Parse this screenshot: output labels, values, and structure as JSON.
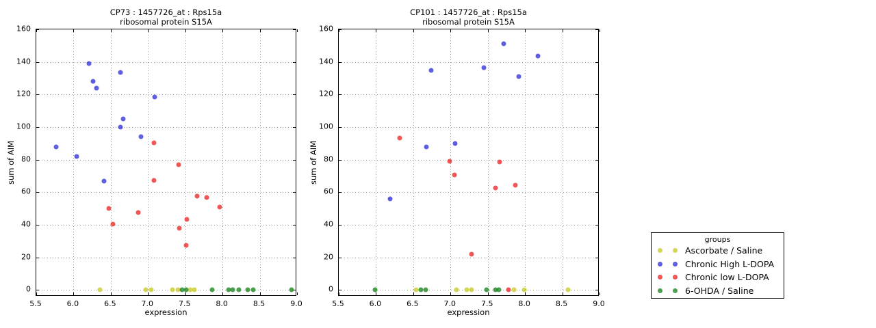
{
  "legend": {
    "title": "groups",
    "entries": [
      {
        "label": "Ascorbate / Saline",
        "color": "rgba(199,199,31,0.75)"
      },
      {
        "label": "Chronic High L-DOPA",
        "color": "rgba(40,40,214,0.75)"
      },
      {
        "label": "Chronic low L-DOPA",
        "color": "rgba(233,30,30,0.75)"
      },
      {
        "label": "6-OHDA / Saline",
        "color": "rgba(15,126,15,0.75)"
      }
    ]
  },
  "chart_data": [
    {
      "type": "scatter",
      "title": "CP73 : 1457726_at : Rps15a",
      "subtitle": "ribosomal protein S15A",
      "xlabel": "expression",
      "ylabel": "sum of AIM",
      "xlim": [
        5.5,
        9.0
      ],
      "ylim": [
        0,
        160
      ],
      "xticks": [
        "5.5",
        "6.0",
        "6.5",
        "7.0",
        "7.5",
        "8.0",
        "8.5",
        "9.0"
      ],
      "yticks": [
        "0",
        "20",
        "40",
        "60",
        "80",
        "100",
        "120",
        "140",
        "160"
      ],
      "grid": true,
      "legend_position": "outside-right",
      "series": [
        {
          "name": "Ascorbate / Saline",
          "points": [
            [
              6.35,
              0
            ],
            [
              6.97,
              0
            ],
            [
              7.04,
              0
            ],
            [
              7.33,
              0
            ],
            [
              7.4,
              0
            ],
            [
              7.57,
              0
            ],
            [
              7.62,
              0
            ]
          ]
        },
        {
          "name": "Chronic High L-DOPA",
          "points": [
            [
              5.77,
              88
            ],
            [
              6.04,
              82
            ],
            [
              6.21,
              139
            ],
            [
              6.26,
              128
            ],
            [
              6.31,
              124
            ],
            [
              6.41,
              67
            ],
            [
              6.63,
              133.5
            ],
            [
              6.63,
              100
            ],
            [
              6.67,
              105
            ],
            [
              6.91,
              94
            ],
            [
              7.09,
              118.5
            ]
          ]
        },
        {
          "name": "Chronic low L-DOPA",
          "points": [
            [
              6.47,
              50
            ],
            [
              6.53,
              40.5
            ],
            [
              6.87,
              47.5
            ],
            [
              7.08,
              90.5
            ],
            [
              7.08,
              67.5
            ],
            [
              7.41,
              77
            ],
            [
              7.42,
              38
            ],
            [
              7.51,
              27.5
            ],
            [
              7.52,
              43.5
            ],
            [
              7.66,
              57.5
            ],
            [
              7.79,
              57
            ],
            [
              7.96,
              51
            ]
          ]
        },
        {
          "name": "6-OHDA / Saline",
          "points": [
            [
              7.46,
              0
            ],
            [
              7.51,
              0
            ],
            [
              7.86,
              0
            ],
            [
              8.08,
              0
            ],
            [
              8.14,
              0
            ],
            [
              8.22,
              0
            ],
            [
              8.34,
              0
            ],
            [
              8.41,
              0
            ],
            [
              8.93,
              0
            ]
          ]
        }
      ]
    },
    {
      "type": "scatter",
      "title": "CP101 : 1457726_at : Rps15a",
      "subtitle": "ribosomal protein S15A",
      "xlabel": "expression",
      "ylabel": "sum of AIM",
      "xlim": [
        5.5,
        9.0
      ],
      "ylim": [
        0,
        160
      ],
      "xticks": [
        "5.5",
        "6.0",
        "6.5",
        "7.0",
        "7.5",
        "8.0",
        "8.5",
        "9.0"
      ],
      "yticks": [
        "0",
        "20",
        "40",
        "60",
        "80",
        "100",
        "120",
        "140",
        "160"
      ],
      "grid": true,
      "series": [
        {
          "name": "Ascorbate / Saline",
          "points": [
            [
              6.54,
              0
            ],
            [
              7.08,
              0
            ],
            [
              7.22,
              0
            ],
            [
              7.28,
              0
            ],
            [
              7.85,
              0
            ],
            [
              7.99,
              0
            ],
            [
              8.58,
              0
            ]
          ]
        },
        {
          "name": "Chronic High L-DOPA",
          "points": [
            [
              6.19,
              56
            ],
            [
              6.68,
              88
            ],
            [
              6.74,
              135
            ],
            [
              7.06,
              90
            ],
            [
              7.45,
              136.5
            ],
            [
              7.71,
              151
            ],
            [
              7.92,
              131
            ],
            [
              8.17,
              143.5
            ]
          ]
        },
        {
          "name": "Chronic low L-DOPA",
          "points": [
            [
              6.32,
              93.5
            ],
            [
              6.99,
              79
            ],
            [
              7.05,
              70.5
            ],
            [
              7.28,
              22
            ],
            [
              7.6,
              62.5
            ],
            [
              7.66,
              78.5
            ],
            [
              7.78,
              0
            ],
            [
              7.87,
              64.5
            ]
          ]
        },
        {
          "name": "6-OHDA / Saline",
          "points": [
            [
              5.99,
              0
            ],
            [
              6.6,
              0
            ],
            [
              6.67,
              0
            ],
            [
              7.48,
              0
            ],
            [
              7.6,
              0
            ],
            [
              7.65,
              0
            ]
          ]
        }
      ]
    }
  ]
}
